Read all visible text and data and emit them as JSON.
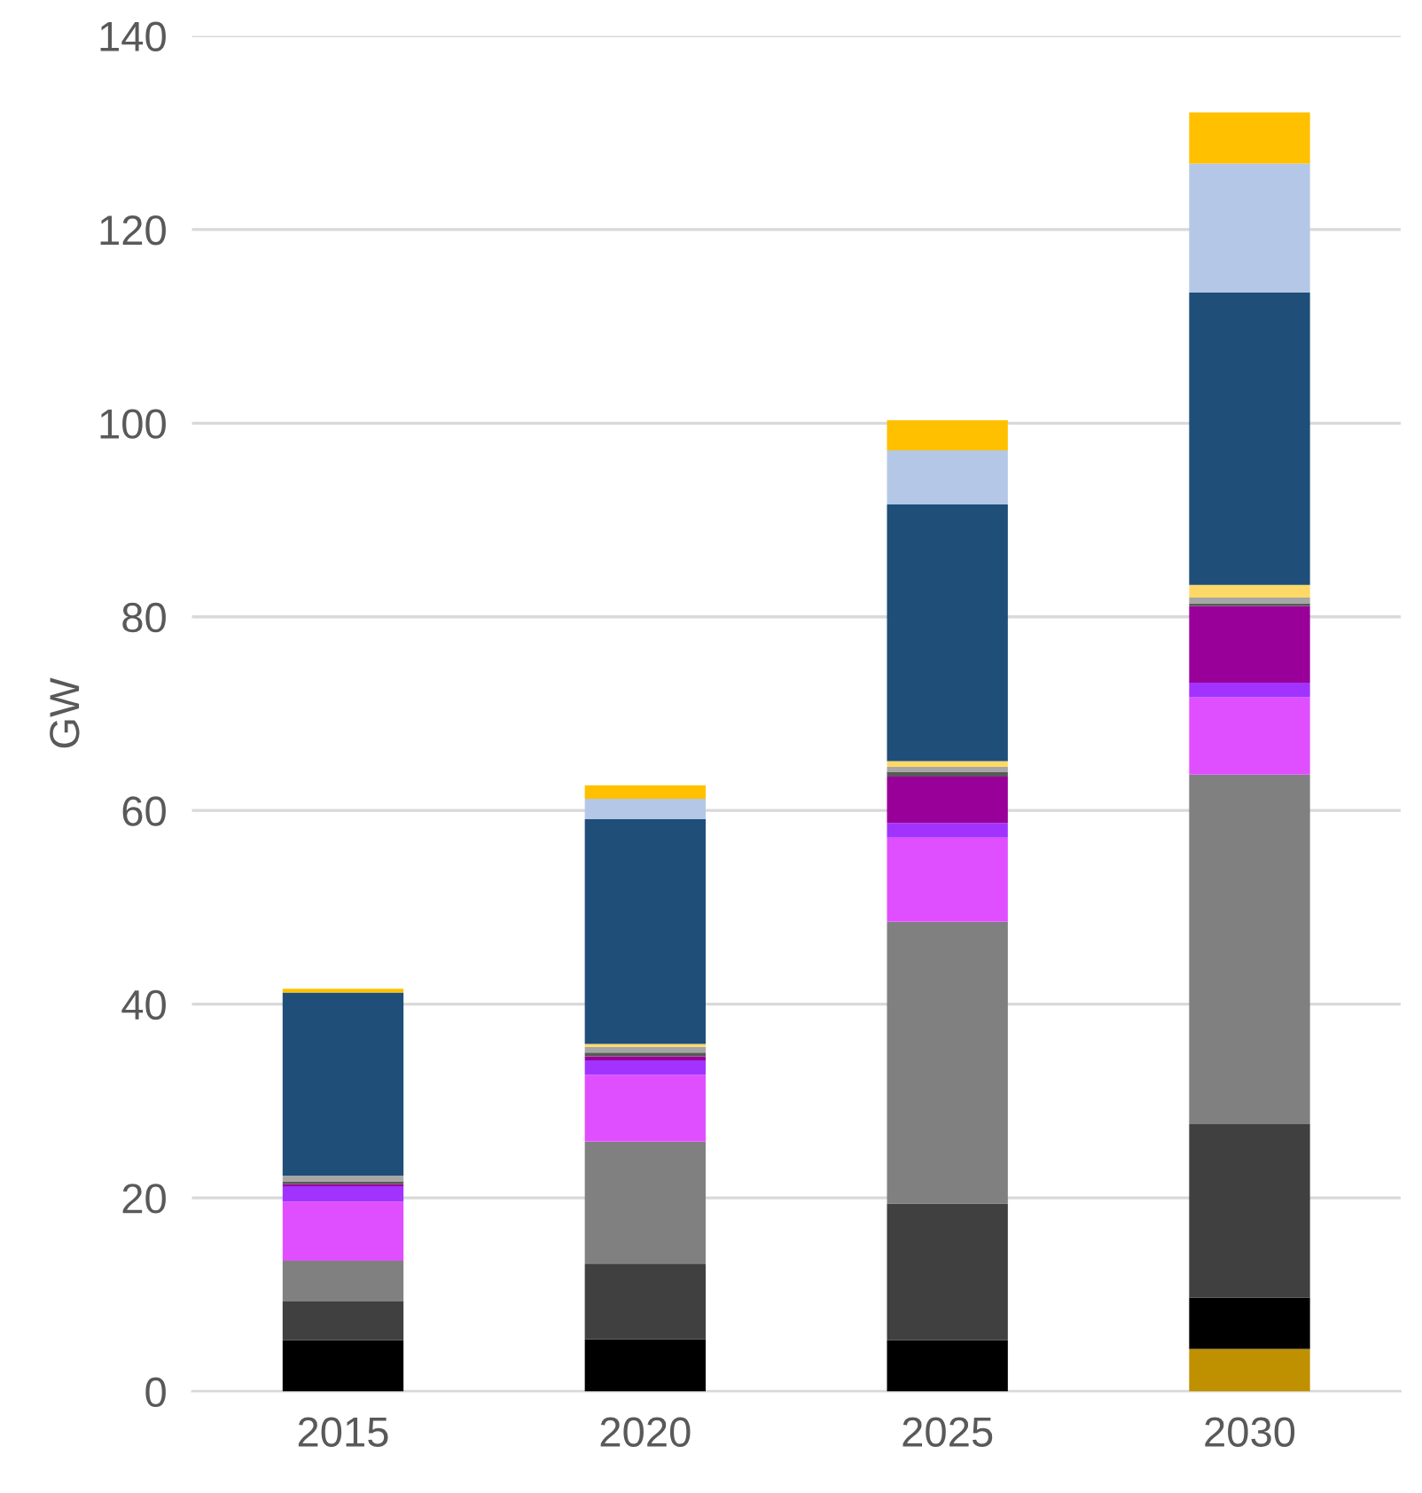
{
  "chart_data": {
    "type": "bar",
    "stacked": true,
    "ylabel": "GW",
    "categories": [
      "2015",
      "2020",
      "2025",
      "2030"
    ],
    "series": [
      {
        "color": "#bf9000",
        "values": [
          0,
          0,
          0,
          4.4
        ]
      },
      {
        "color": "#000000",
        "values": [
          5.3,
          5.4,
          5.3,
          5.3
        ]
      },
      {
        "color": "#404040",
        "values": [
          4.0,
          7.8,
          14.1,
          17.9
        ]
      },
      {
        "color": "#808080",
        "values": [
          4.2,
          12.6,
          29.1,
          36.1
        ]
      },
      {
        "color": "#e04fff",
        "values": [
          6.1,
          6.9,
          8.7,
          8.0
        ]
      },
      {
        "color": "#a233ff",
        "values": [
          1.6,
          1.5,
          1.5,
          1.5
        ]
      },
      {
        "color": "#990099",
        "values": [
          0.2,
          0.4,
          4.8,
          7.9
        ]
      },
      {
        "color": "#595959",
        "values": [
          0.3,
          0.4,
          0.5,
          0.3
        ]
      },
      {
        "color": "#a6a6a6",
        "values": [
          0.6,
          0.6,
          0.5,
          0.6
        ]
      },
      {
        "color": "#ffd966",
        "values": [
          0,
          0.3,
          0.6,
          1.3
        ]
      },
      {
        "color": "#1f4e79",
        "values": [
          18.9,
          23.2,
          26.5,
          30.2
        ]
      },
      {
        "color": "#b4c7e7",
        "values": [
          0,
          2.1,
          5.6,
          13.3
        ]
      },
      {
        "color": "#ffc000",
        "values": [
          0.4,
          1.4,
          3.1,
          5.3
        ]
      }
    ],
    "ylim": [
      0,
      140
    ],
    "yticks": [
      0,
      20,
      40,
      60,
      80,
      100,
      120,
      140
    ],
    "grid": "y"
  }
}
